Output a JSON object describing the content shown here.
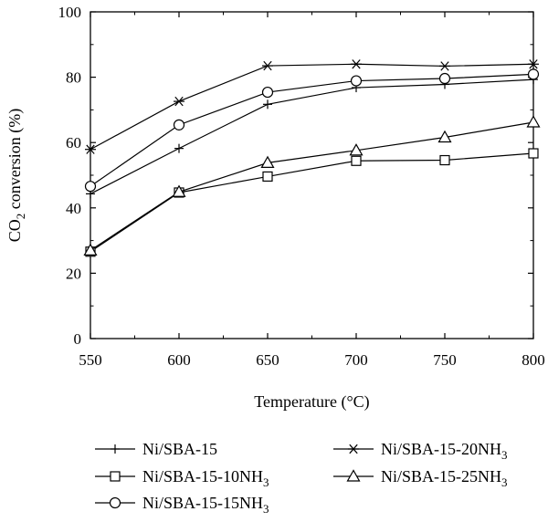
{
  "chart_data": {
    "type": "line",
    "title": "",
    "xlabel": "Temperature (°C)",
    "ylabel_parts": [
      "CO",
      "2",
      " conversion (%)"
    ],
    "xlim": [
      550,
      800
    ],
    "ylim": [
      0,
      100
    ],
    "x_ticks": [
      550,
      600,
      650,
      700,
      750,
      800
    ],
    "y_ticks": [
      0,
      20,
      40,
      60,
      80,
      100
    ],
    "grid": false,
    "legend_position": "bottom",
    "x": [
      550,
      600,
      650,
      700,
      750,
      800
    ],
    "series": [
      {
        "name": "Ni/SBA-15",
        "marker": "plus",
        "values": [
          44.3,
          58.2,
          71.7,
          76.8,
          77.8,
          79.3
        ]
      },
      {
        "name": "Ni/SBA-15-10NH₃",
        "marker": "square",
        "values": [
          26.6,
          44.7,
          49.6,
          54.4,
          54.6,
          56.7
        ]
      },
      {
        "name": "Ni/SBA-15-15NH₃",
        "marker": "circle",
        "values": [
          46.6,
          65.4,
          75.4,
          78.9,
          79.6,
          80.9
        ]
      },
      {
        "name": "Ni/SBA-15-20NH₃",
        "marker": "asterisk",
        "values": [
          57.9,
          72.6,
          83.5,
          84.0,
          83.4,
          84.0
        ]
      },
      {
        "name": "Ni/SBA-15-25NH₃",
        "marker": "triangle",
        "values": [
          27.0,
          44.9,
          53.8,
          57.6,
          61.6,
          66.2
        ]
      }
    ]
  }
}
